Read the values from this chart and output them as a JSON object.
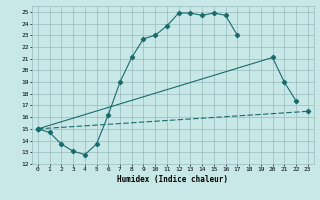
{
  "xlabel": "Humidex (Indice chaleur)",
  "background_color": "#c8e8e8",
  "grid_color": "#99bbbb",
  "line_color": "#1a6b6b",
  "xlim": [
    -0.5,
    23.5
  ],
  "ylim": [
    12,
    25.5
  ],
  "xticks": [
    0,
    1,
    2,
    3,
    4,
    5,
    6,
    7,
    8,
    9,
    10,
    11,
    12,
    13,
    14,
    15,
    16,
    17,
    18,
    19,
    20,
    21,
    22,
    23
  ],
  "yticks": [
    12,
    13,
    14,
    15,
    16,
    17,
    18,
    19,
    20,
    21,
    22,
    23,
    24,
    25
  ],
  "curve1_x": [
    0,
    1,
    2,
    3,
    4,
    5,
    6,
    7,
    8,
    9,
    10,
    11,
    12,
    13,
    14,
    15,
    16,
    17
  ],
  "curve1_y": [
    15.0,
    14.7,
    13.7,
    13.1,
    12.8,
    13.7,
    16.2,
    19.0,
    21.1,
    22.7,
    23.0,
    23.8,
    24.9,
    24.9,
    24.7,
    24.9,
    24.7,
    23.0
  ],
  "curve2_x": [
    0,
    20,
    21,
    22
  ],
  "curve2_y": [
    15.0,
    21.1,
    19.0,
    17.4
  ],
  "curve3_x": [
    0,
    23
  ],
  "curve3_y": [
    15.0,
    16.5
  ]
}
